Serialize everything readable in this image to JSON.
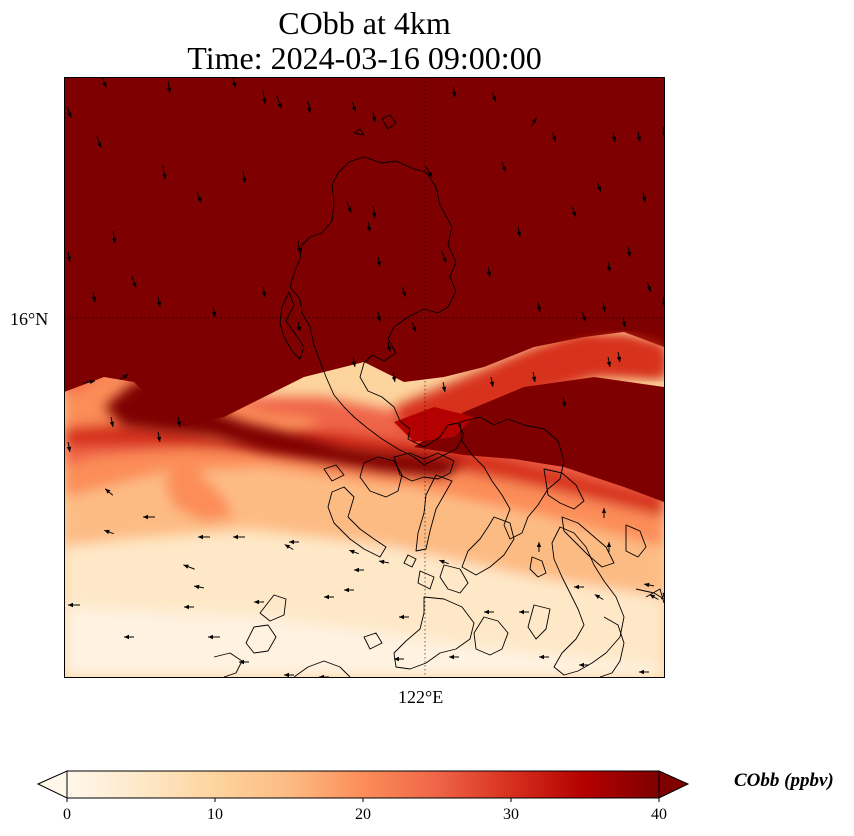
{
  "title": {
    "line1": "CObb at 4km",
    "line2": "Time: 2024-03-16 09:00:00"
  },
  "axes": {
    "lat_tick": "16°N",
    "lon_tick": "122°E"
  },
  "colorbar": {
    "label": "CObb (ppbv)",
    "ticks": [
      "0",
      "10",
      "20",
      "30",
      "40"
    ],
    "range": [
      0,
      40
    ],
    "colormap": "OrRd",
    "extend": "both",
    "colors": [
      "#fff7ec",
      "#fee8c8",
      "#fdd49e",
      "#fdbb84",
      "#fc8d59",
      "#ef6548",
      "#d7301f",
      "#b30000",
      "#7f0000"
    ]
  },
  "map": {
    "gridlines": "dotted",
    "features": [
      "coastlines",
      "wind-vectors"
    ]
  }
}
